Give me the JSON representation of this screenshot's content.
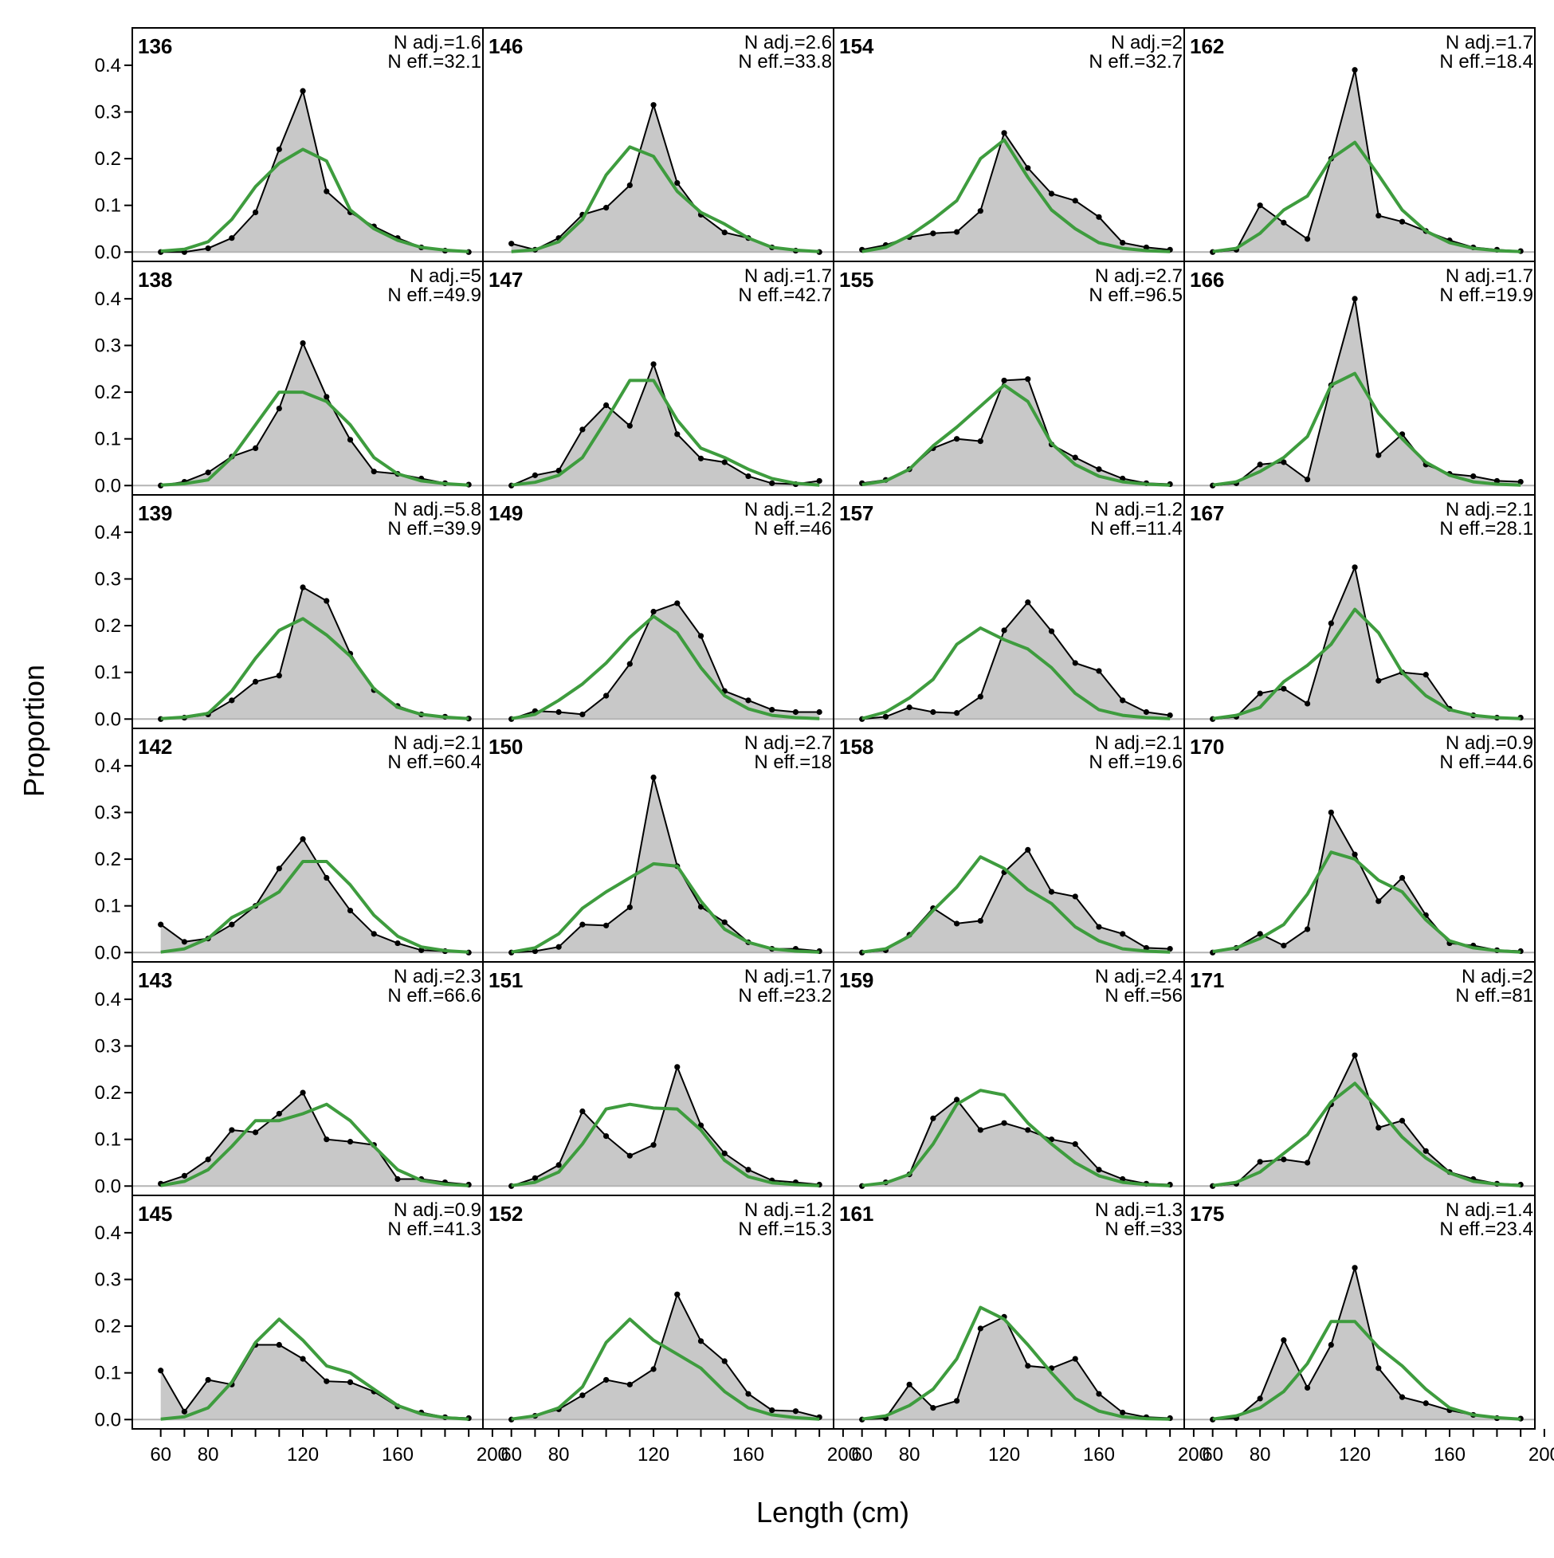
{
  "chart_data": {
    "type": "area",
    "xlabel": "Length (cm)",
    "ylabel": "Proportion",
    "xlim": [
      48,
      196
    ],
    "ylim": [
      -0.02,
      0.48
    ],
    "x_ticks": [
      60,
      80,
      120,
      160,
      200
    ],
    "x_minor_ticks": [
      60,
      70,
      80,
      90,
      100,
      110,
      120,
      130,
      140,
      150,
      160,
      170,
      180,
      190,
      200
    ],
    "y_ticks": [
      "0.0",
      "0.1",
      "0.2",
      "0.3",
      "0.4"
    ],
    "y_tick_values": [
      0,
      0.1,
      0.2,
      0.3,
      0.4
    ],
    "grid": false,
    "layout": {
      "rows": 6,
      "cols": 4,
      "order": "column-major"
    },
    "colors": {
      "observed_fill": "#c8c8c8",
      "observed_line": "#000000",
      "expected_line": "#3e9c3e",
      "zero_line": "#b4b4b4"
    },
    "series": [
      {
        "role": "observed",
        "style": "grey area with black line and points"
      },
      {
        "role": "expected",
        "style": "green line"
      }
    ],
    "x": [
      60,
      70,
      80,
      90,
      100,
      110,
      120,
      130,
      140,
      150,
      160,
      170,
      180,
      190
    ],
    "panels": [
      {
        "id": "136",
        "nadj": "N adj.=1.6",
        "neff": "N eff.=32.1",
        "obs": [
          0.0,
          0.0,
          0.008,
          0.03,
          0.085,
          0.22,
          0.345,
          0.13,
          0.085,
          0.055,
          0.03,
          0.01,
          0.003,
          0.0
        ],
        "exp": [
          0.002,
          0.006,
          0.022,
          0.07,
          0.14,
          0.19,
          0.22,
          0.195,
          0.09,
          0.05,
          0.025,
          0.01,
          0.004,
          0.001
        ]
      },
      {
        "id": "138",
        "nadj": "N adj.=5",
        "neff": "N eff.=49.9",
        "obs": [
          0.0,
          0.008,
          0.028,
          0.062,
          0.08,
          0.165,
          0.305,
          0.19,
          0.098,
          0.03,
          0.025,
          0.015,
          0.005,
          0.002
        ],
        "exp": [
          0.001,
          0.004,
          0.012,
          0.06,
          0.13,
          0.2,
          0.2,
          0.18,
          0.13,
          0.06,
          0.025,
          0.01,
          0.004,
          0.001
        ]
      },
      {
        "id": "139",
        "nadj": "N adj.=5.8",
        "neff": "N eff.=39.9",
        "obs": [
          0.0,
          0.003,
          0.01,
          0.04,
          0.08,
          0.093,
          0.282,
          0.253,
          0.14,
          0.062,
          0.028,
          0.01,
          0.005,
          0.001
        ],
        "exp": [
          0.001,
          0.004,
          0.012,
          0.06,
          0.13,
          0.19,
          0.215,
          0.18,
          0.135,
          0.065,
          0.025,
          0.01,
          0.004,
          0.001
        ]
      },
      {
        "id": "142",
        "nadj": "N adj.=2.1",
        "neff": "N eff.=60.4",
        "obs": [
          0.06,
          0.023,
          0.03,
          0.06,
          0.1,
          0.18,
          0.243,
          0.16,
          0.09,
          0.04,
          0.02,
          0.005,
          0.003,
          0.0
        ],
        "exp": [
          0.001,
          0.008,
          0.03,
          0.075,
          0.1,
          0.13,
          0.195,
          0.195,
          0.145,
          0.08,
          0.035,
          0.012,
          0.004,
          0.001
        ]
      },
      {
        "id": "143",
        "nadj": "N adj.=2.3",
        "neff": "N eff.=66.6",
        "obs": [
          0.005,
          0.022,
          0.057,
          0.12,
          0.115,
          0.155,
          0.2,
          0.1,
          0.095,
          0.088,
          0.015,
          0.015,
          0.008,
          0.003
        ],
        "exp": [
          0.001,
          0.01,
          0.035,
          0.085,
          0.14,
          0.14,
          0.155,
          0.175,
          0.14,
          0.085,
          0.035,
          0.012,
          0.004,
          0.001
        ]
      },
      {
        "id": "145",
        "nadj": "N adj.=0.9",
        "neff": "N eff.=41.3",
        "obs": [
          0.105,
          0.017,
          0.085,
          0.075,
          0.16,
          0.16,
          0.13,
          0.082,
          0.08,
          0.06,
          0.028,
          0.015,
          0.005,
          0.003
        ],
        "exp": [
          0.001,
          0.006,
          0.025,
          0.08,
          0.165,
          0.215,
          0.17,
          0.115,
          0.1,
          0.065,
          0.03,
          0.012,
          0.004,
          0.001
        ]
      },
      {
        "id": "146",
        "nadj": "N adj.=2.6",
        "neff": "N eff.=33.8",
        "obs": [
          0.018,
          0.005,
          0.03,
          0.08,
          0.095,
          0.143,
          0.315,
          0.148,
          0.08,
          0.042,
          0.03,
          0.01,
          0.003,
          0.0
        ],
        "exp": [
          0.001,
          0.005,
          0.022,
          0.07,
          0.165,
          0.225,
          0.205,
          0.13,
          0.085,
          0.06,
          0.03,
          0.01,
          0.004,
          0.001
        ]
      },
      {
        "id": "147",
        "nadj": "N adj.=1.7",
        "neff": "N eff.=42.7",
        "obs": [
          0.0,
          0.022,
          0.032,
          0.12,
          0.172,
          0.128,
          0.26,
          0.11,
          0.058,
          0.05,
          0.02,
          0.005,
          0.003,
          0.01
        ],
        "exp": [
          0.001,
          0.007,
          0.022,
          0.06,
          0.14,
          0.225,
          0.225,
          0.14,
          0.08,
          0.06,
          0.035,
          0.015,
          0.005,
          0.001
        ]
      },
      {
        "id": "149",
        "nadj": "N adj.=1.2",
        "neff": "N eff.=46",
        "obs": [
          0.0,
          0.017,
          0.015,
          0.01,
          0.05,
          0.118,
          0.23,
          0.248,
          0.178,
          0.06,
          0.04,
          0.02,
          0.015,
          0.015
        ],
        "exp": [
          0.001,
          0.01,
          0.04,
          0.075,
          0.12,
          0.175,
          0.22,
          0.185,
          0.11,
          0.05,
          0.022,
          0.008,
          0.003,
          0.001
        ]
      },
      {
        "id": "150",
        "nadj": "N adj.=2.7",
        "neff": "N eff.=18",
        "obs": [
          0.0,
          0.003,
          0.012,
          0.06,
          0.058,
          0.097,
          0.375,
          0.185,
          0.098,
          0.065,
          0.022,
          0.008,
          0.008,
          0.003
        ],
        "exp": [
          0.001,
          0.01,
          0.04,
          0.095,
          0.13,
          0.16,
          0.19,
          0.185,
          0.11,
          0.05,
          0.022,
          0.008,
          0.003,
          0.001
        ]
      },
      {
        "id": "151",
        "nadj": "N adj.=1.7",
        "neff": "N eff.=23.2",
        "obs": [
          0.0,
          0.017,
          0.045,
          0.16,
          0.107,
          0.065,
          0.088,
          0.255,
          0.13,
          0.07,
          0.035,
          0.012,
          0.008,
          0.003
        ],
        "exp": [
          0.001,
          0.008,
          0.03,
          0.09,
          0.165,
          0.175,
          0.167,
          0.165,
          0.12,
          0.055,
          0.02,
          0.007,
          0.003,
          0.001
        ]
      },
      {
        "id": "152",
        "nadj": "N adj.=1.2",
        "neff": "N eff.=15.3",
        "obs": [
          0.0,
          0.008,
          0.022,
          0.052,
          0.085,
          0.075,
          0.108,
          0.268,
          0.168,
          0.125,
          0.055,
          0.02,
          0.018,
          0.005
        ],
        "exp": [
          0.001,
          0.008,
          0.025,
          0.07,
          0.165,
          0.215,
          0.17,
          0.14,
          0.11,
          0.06,
          0.025,
          0.01,
          0.004,
          0.001
        ]
      },
      {
        "id": "154",
        "nadj": "N adj.=2",
        "neff": "N eff.=32.7",
        "obs": [
          0.005,
          0.015,
          0.032,
          0.04,
          0.043,
          0.088,
          0.255,
          0.18,
          0.125,
          0.11,
          0.075,
          0.02,
          0.01,
          0.005
        ],
        "exp": [
          0.001,
          0.01,
          0.035,
          0.07,
          0.11,
          0.2,
          0.24,
          0.16,
          0.09,
          0.05,
          0.02,
          0.008,
          0.003,
          0.001
        ]
      },
      {
        "id": "155",
        "nadj": "N adj.=2.7",
        "neff": "N eff.=96.5",
        "obs": [
          0.005,
          0.012,
          0.035,
          0.08,
          0.1,
          0.095,
          0.225,
          0.228,
          0.088,
          0.06,
          0.035,
          0.015,
          0.005,
          0.003
        ],
        "exp": [
          0.002,
          0.01,
          0.035,
          0.085,
          0.125,
          0.17,
          0.215,
          0.18,
          0.09,
          0.045,
          0.02,
          0.008,
          0.003,
          0.001
        ]
      },
      {
        "id": "157",
        "nadj": "N adj.=1.2",
        "neff": "N eff.=11.4",
        "obs": [
          0.0,
          0.005,
          0.025,
          0.015,
          0.013,
          0.048,
          0.19,
          0.25,
          0.188,
          0.12,
          0.103,
          0.04,
          0.015,
          0.008
        ],
        "exp": [
          0.001,
          0.015,
          0.045,
          0.085,
          0.16,
          0.195,
          0.17,
          0.15,
          0.11,
          0.055,
          0.02,
          0.008,
          0.003,
          0.001
        ]
      },
      {
        "id": "158",
        "nadj": "N adj.=2.1",
        "neff": "N eff.=19.6",
        "obs": [
          0.0,
          0.005,
          0.038,
          0.095,
          0.062,
          0.068,
          0.172,
          0.22,
          0.13,
          0.12,
          0.055,
          0.04,
          0.01,
          0.008
        ],
        "exp": [
          0.001,
          0.008,
          0.035,
          0.09,
          0.14,
          0.205,
          0.18,
          0.135,
          0.105,
          0.055,
          0.025,
          0.008,
          0.003,
          0.001
        ]
      },
      {
        "id": "159",
        "nadj": "N adj.=2.4",
        "neff": "N eff.=56",
        "obs": [
          0.0,
          0.008,
          0.025,
          0.145,
          0.185,
          0.12,
          0.135,
          0.12,
          0.1,
          0.09,
          0.035,
          0.015,
          0.005,
          0.003
        ],
        "exp": [
          0.001,
          0.007,
          0.025,
          0.09,
          0.175,
          0.205,
          0.195,
          0.135,
          0.09,
          0.05,
          0.022,
          0.008,
          0.003,
          0.001
        ]
      },
      {
        "id": "161",
        "nadj": "N adj.=1.3",
        "neff": "N eff.=33",
        "obs": [
          0.0,
          0.003,
          0.075,
          0.025,
          0.04,
          0.195,
          0.22,
          0.115,
          0.11,
          0.13,
          0.055,
          0.015,
          0.005,
          0.003
        ],
        "exp": [
          0.001,
          0.008,
          0.03,
          0.065,
          0.13,
          0.24,
          0.215,
          0.16,
          0.1,
          0.045,
          0.018,
          0.006,
          0.002,
          0.001
        ]
      },
      {
        "id": "162",
        "nadj": "N adj.=1.7",
        "neff": "N eff.=18.4",
        "obs": [
          0.0,
          0.005,
          0.1,
          0.063,
          0.028,
          0.2,
          0.39,
          0.078,
          0.065,
          0.045,
          0.025,
          0.01,
          0.005,
          0.002
        ],
        "exp": [
          0.001,
          0.008,
          0.04,
          0.09,
          0.12,
          0.2,
          0.235,
          0.165,
          0.09,
          0.045,
          0.02,
          0.008,
          0.003,
          0.001
        ]
      },
      {
        "id": "166",
        "nadj": "N adj.=1.7",
        "neff": "N eff.=19.9",
        "obs": [
          0.0,
          0.005,
          0.045,
          0.05,
          0.013,
          0.215,
          0.4,
          0.065,
          0.11,
          0.045,
          0.025,
          0.02,
          0.01,
          0.008
        ],
        "exp": [
          0.001,
          0.008,
          0.03,
          0.06,
          0.105,
          0.215,
          0.24,
          0.155,
          0.1,
          0.05,
          0.022,
          0.008,
          0.003,
          0.001
        ]
      },
      {
        "id": "167",
        "nadj": "N adj.=2.1",
        "neff": "N eff.=28.1",
        "obs": [
          0.0,
          0.005,
          0.055,
          0.065,
          0.033,
          0.205,
          0.325,
          0.082,
          0.1,
          0.095,
          0.022,
          0.008,
          0.003,
          0.003
        ],
        "exp": [
          0.001,
          0.008,
          0.025,
          0.08,
          0.115,
          0.16,
          0.235,
          0.185,
          0.1,
          0.05,
          0.02,
          0.008,
          0.003,
          0.001
        ]
      },
      {
        "id": "170",
        "nadj": "N adj.=0.9",
        "neff": "N eff.=44.6",
        "obs": [
          0.0,
          0.01,
          0.04,
          0.015,
          0.05,
          0.3,
          0.21,
          0.11,
          0.16,
          0.08,
          0.02,
          0.015,
          0.005,
          0.003
        ],
        "exp": [
          0.002,
          0.01,
          0.03,
          0.06,
          0.125,
          0.215,
          0.2,
          0.155,
          0.13,
          0.07,
          0.025,
          0.01,
          0.004,
          0.001
        ]
      },
      {
        "id": "171",
        "nadj": "N adj.=2",
        "neff": "N eff.=81",
        "obs": [
          0.0,
          0.005,
          0.052,
          0.057,
          0.05,
          0.175,
          0.28,
          0.125,
          0.14,
          0.075,
          0.03,
          0.015,
          0.005,
          0.003
        ],
        "exp": [
          0.001,
          0.008,
          0.03,
          0.07,
          0.11,
          0.18,
          0.22,
          0.165,
          0.105,
          0.06,
          0.028,
          0.01,
          0.004,
          0.001
        ]
      },
      {
        "id": "175",
        "nadj": "N adj.=1.4",
        "neff": "N eff.=23.4",
        "obs": [
          0.0,
          0.003,
          0.045,
          0.17,
          0.068,
          0.16,
          0.325,
          0.11,
          0.048,
          0.035,
          0.02,
          0.01,
          0.003,
          0.002
        ],
        "exp": [
          0.001,
          0.008,
          0.025,
          0.06,
          0.12,
          0.21,
          0.21,
          0.155,
          0.115,
          0.065,
          0.025,
          0.01,
          0.004,
          0.001
        ]
      }
    ]
  }
}
